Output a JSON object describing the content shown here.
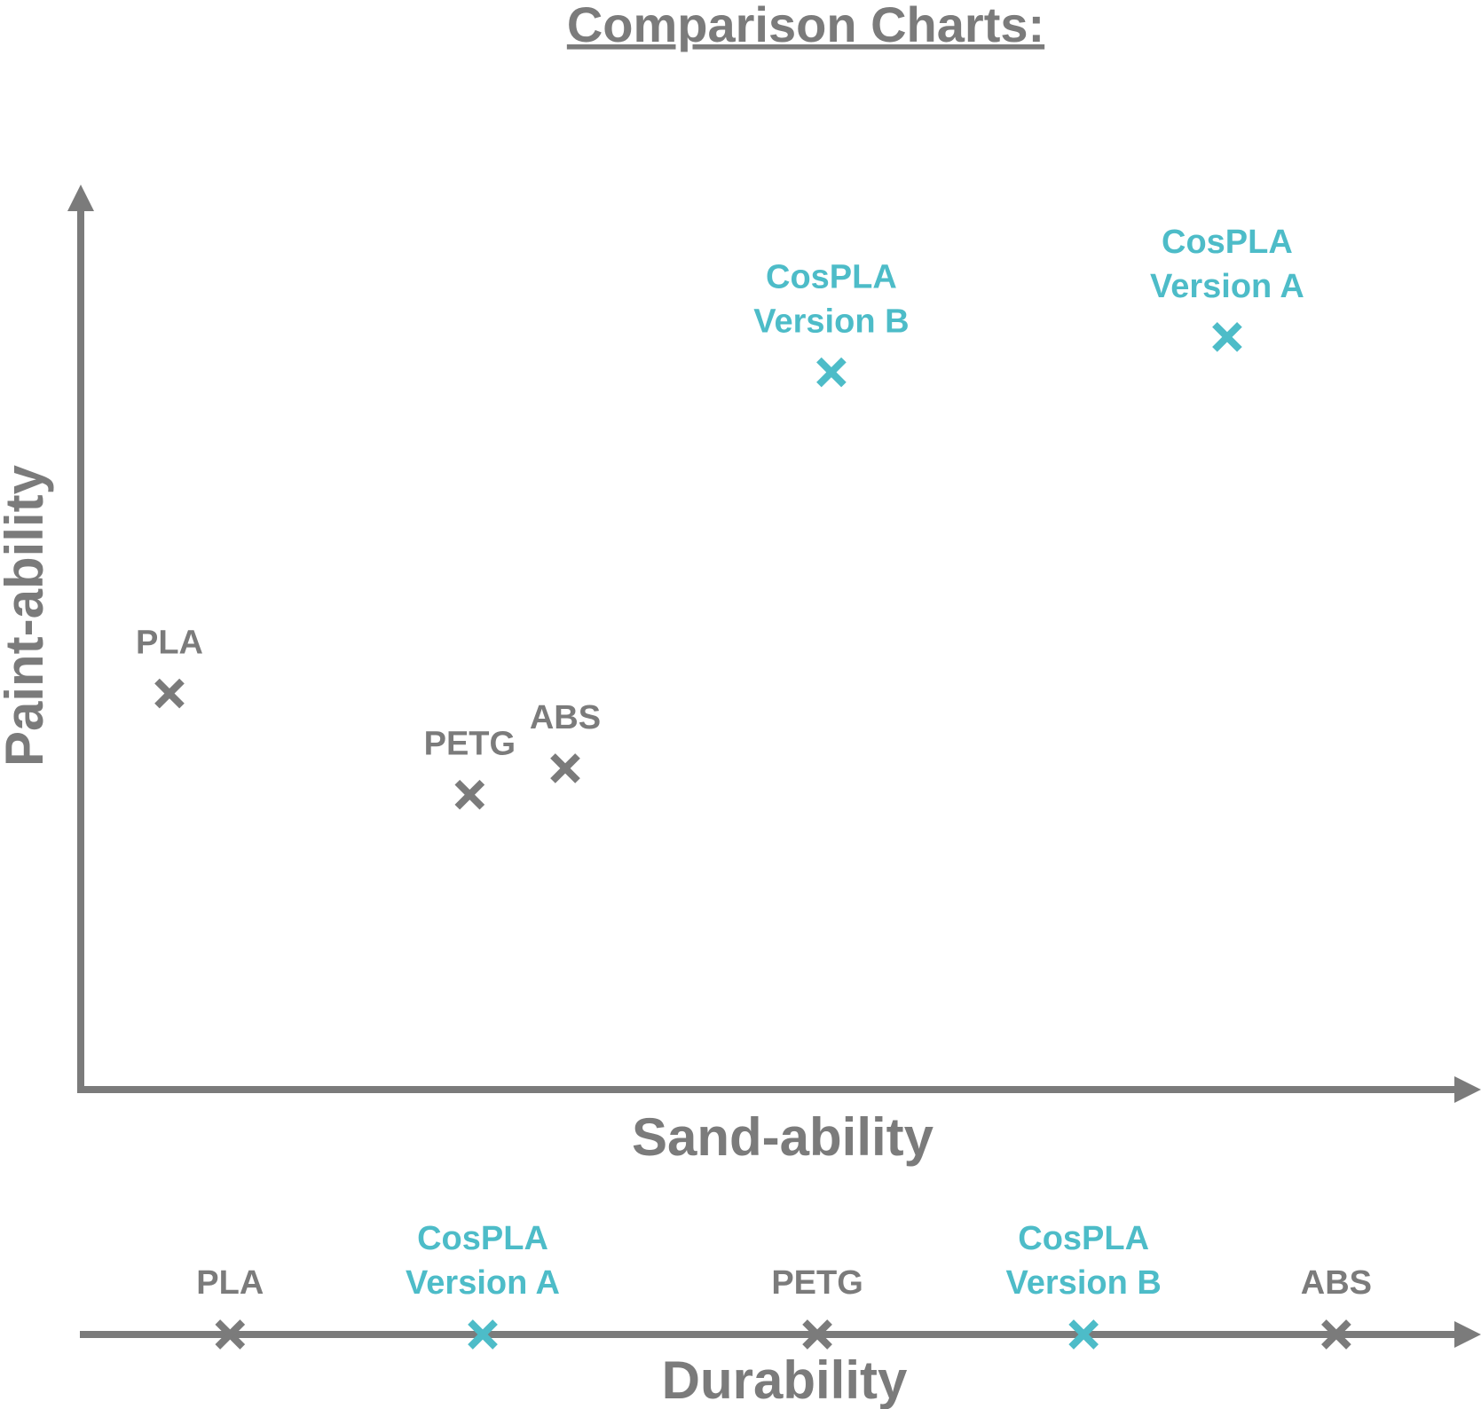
{
  "title": "Comparison Charts:",
  "colors": {
    "gray": "#7b7b7b",
    "teal": "#4dbcc8",
    "background": "#ffffff"
  },
  "chart_data": [
    {
      "type": "scatter",
      "title": "Comparison Charts:",
      "xlabel": "Sand-ability",
      "ylabel": "Paint-ability",
      "xlim": [
        0,
        100
      ],
      "ylim": [
        0,
        100
      ],
      "grid": false,
      "axis_ticks": false,
      "points": [
        {
          "label": [
            "PLA"
          ],
          "x": 6.5,
          "y": 45,
          "color": "gray"
        },
        {
          "label": [
            "PETG"
          ],
          "x": 28.5,
          "y": 33.5,
          "color": "gray"
        },
        {
          "label": [
            "ABS"
          ],
          "x": 35.5,
          "y": 36.5,
          "color": "gray"
        },
        {
          "label": [
            "CosPLA",
            "Version B"
          ],
          "x": 55,
          "y": 81.5,
          "color": "teal"
        },
        {
          "label": [
            "CosPLA",
            "Version A"
          ],
          "x": 84,
          "y": 85.5,
          "color": "teal"
        }
      ]
    },
    {
      "type": "scatter",
      "xlabel": "Durability",
      "xlim": [
        0,
        100
      ],
      "one_dimensional": true,
      "points": [
        {
          "label": [
            "PLA"
          ],
          "x": 11,
          "color": "gray"
        },
        {
          "label": [
            "CosPLA",
            "Version A"
          ],
          "x": 29.5,
          "color": "teal"
        },
        {
          "label": [
            "PETG"
          ],
          "x": 54,
          "color": "gray"
        },
        {
          "label": [
            "CosPLA",
            "Version B"
          ],
          "x": 73.5,
          "color": "teal"
        },
        {
          "label": [
            "ABS"
          ],
          "x": 92,
          "color": "gray"
        }
      ]
    }
  ]
}
